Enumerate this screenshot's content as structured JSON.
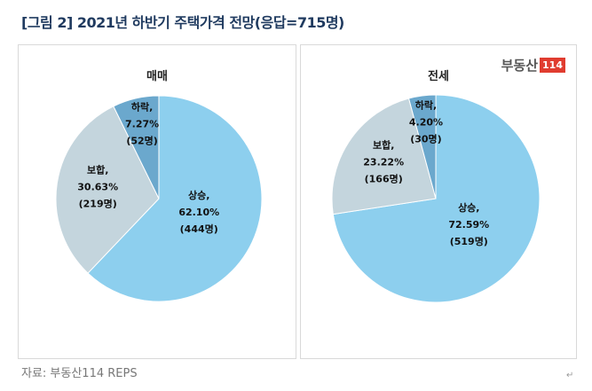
{
  "title": "[그림 2] 2021년 하반기 주택가격 전망(응답=715명)",
  "logo": {
    "text": "부동산",
    "number": "114"
  },
  "source": "자료: 부동산114 REPS",
  "return_mark": "↵",
  "chart_data": [
    {
      "type": "pie",
      "title": "매매",
      "start": "12 o'clock clockwise",
      "slices": [
        {
          "name": "상승",
          "percent": 62.1,
          "count": 444,
          "label": [
            "상승,",
            "62.10%",
            "(444명)"
          ],
          "color": "#8dcfee"
        },
        {
          "name": "보합",
          "percent": 30.63,
          "count": 219,
          "label": [
            "보합,",
            "30.63%",
            "(219명)"
          ],
          "color": "#c4d5dd"
        },
        {
          "name": "하락",
          "percent": 7.27,
          "count": 52,
          "label": [
            "하락,",
            "7.27%",
            "(52명)"
          ],
          "color": "#6ba8cd"
        }
      ]
    },
    {
      "type": "pie",
      "title": "전세",
      "start": "12 o'clock clockwise",
      "slices": [
        {
          "name": "상승",
          "percent": 72.59,
          "count": 519,
          "label": [
            "상승,",
            "72.59%",
            "(519명)"
          ],
          "color": "#8dcfee"
        },
        {
          "name": "보합",
          "percent": 23.22,
          "count": 166,
          "label": [
            "보합,",
            "23.22%",
            "(166명)"
          ],
          "color": "#c4d5dd"
        },
        {
          "name": "하락",
          "percent": 4.2,
          "count": 30,
          "label": [
            "하락,",
            "4.20%",
            "(30명)"
          ],
          "color": "#6ba8cd"
        }
      ]
    }
  ]
}
